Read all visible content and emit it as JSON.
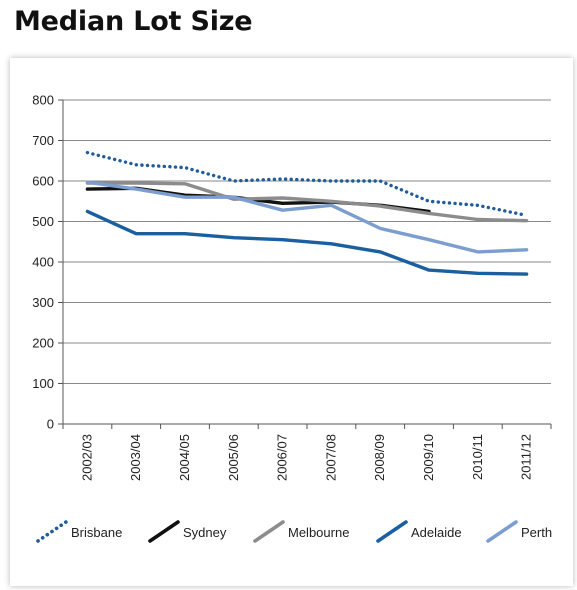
{
  "page": {
    "title": "Median Lot Size"
  },
  "chart_data": {
    "type": "line",
    "title": "Median Lot Size",
    "xlabel": "",
    "ylabel": "",
    "ylim": [
      0,
      800
    ],
    "yticks": [
      0,
      100,
      200,
      300,
      400,
      500,
      600,
      700,
      800
    ],
    "grid": true,
    "legend_position": "bottom",
    "categories": [
      "2002/03",
      "2003/04",
      "2004/05",
      "2005/06",
      "2006/07",
      "2007/08",
      "2008/09",
      "2009/10",
      "2010/11",
      "2011/12"
    ],
    "series": [
      {
        "name": "Brisbane",
        "color": "#1f5c99",
        "style": "dotted",
        "values": [
          670,
          640,
          633,
          600,
          605,
          600,
          600,
          550,
          540,
          515
        ]
      },
      {
        "name": "Sydney",
        "color": "#111111",
        "style": "solid",
        "values": [
          580,
          582,
          565,
          560,
          545,
          548,
          540,
          525,
          null,
          null
        ]
      },
      {
        "name": "Melbourne",
        "color": "#8c8c8c",
        "style": "solid",
        "values": [
          595,
          595,
          593,
          555,
          558,
          550,
          538,
          520,
          505,
          502
        ]
      },
      {
        "name": "Adelaide",
        "color": "#1a5fa0",
        "style": "solid",
        "values": [
          525,
          470,
          470,
          460,
          455,
          445,
          425,
          380,
          372,
          370
        ]
      },
      {
        "name": "Perth",
        "color": "#7b9dd0",
        "style": "solid",
        "values": [
          597,
          580,
          560,
          560,
          528,
          540,
          483,
          455,
          425,
          430
        ]
      }
    ]
  }
}
